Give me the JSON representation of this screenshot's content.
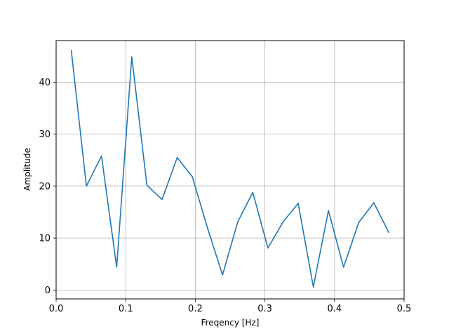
{
  "chart_data": {
    "type": "line",
    "title": "",
    "xlabel": "Freqency [Hz]",
    "ylabel": "Amplitude",
    "xlim": [
      0.0,
      0.5
    ],
    "ylim": [
      -1.7,
      48.0
    ],
    "grid": true,
    "line_color": "#1f77b4",
    "x_ticks": [
      0.0,
      0.1,
      0.2,
      0.3,
      0.4,
      0.5
    ],
    "x_tick_labels": [
      "0.0",
      "0.1",
      "0.2",
      "0.3",
      "0.4",
      "0.5"
    ],
    "y_ticks": [
      0,
      10,
      20,
      30,
      40
    ],
    "y_tick_labels": [
      "0",
      "10",
      "20",
      "30",
      "40"
    ],
    "series": [
      {
        "x": [
          0.0217,
          0.0435,
          0.0652,
          0.087,
          0.1087,
          0.1304,
          0.1522,
          0.1739,
          0.1957,
          0.2174,
          0.2391,
          0.2609,
          0.2826,
          0.3043,
          0.3261,
          0.3478,
          0.3696,
          0.3913,
          0.413,
          0.4348,
          0.4565,
          0.4783
        ],
        "values": [
          46.2,
          20.0,
          25.8,
          4.4,
          44.9,
          20.2,
          17.4,
          25.5,
          21.8,
          12.0,
          2.9,
          13.1,
          18.8,
          8.1,
          13.1,
          16.7,
          0.6,
          15.3,
          4.4,
          13.0,
          16.8,
          11.0
        ]
      }
    ]
  }
}
